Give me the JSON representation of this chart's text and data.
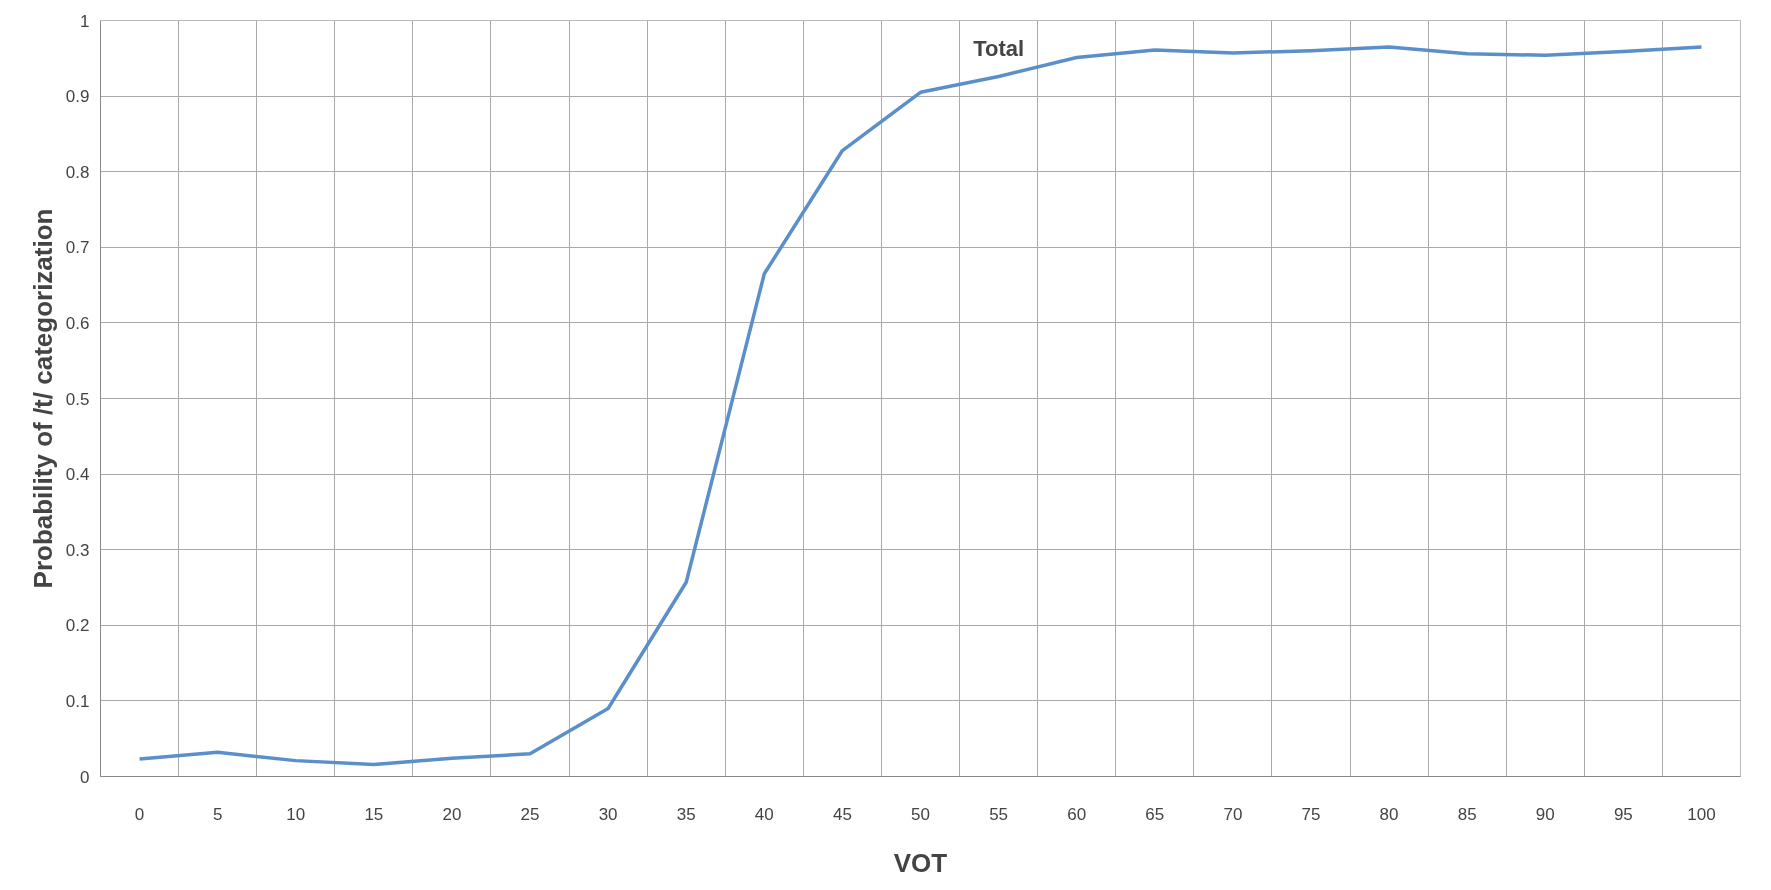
{
  "chart_data": {
    "type": "line",
    "title": "Total",
    "xlabel": "VOT",
    "ylabel": "Probability of /t/ categorization",
    "categories": [
      "0",
      "5",
      "10",
      "15",
      "20",
      "25",
      "30",
      "35",
      "40",
      "45",
      "50",
      "55",
      "60",
      "65",
      "70",
      "75",
      "80",
      "85",
      "90",
      "95",
      "100"
    ],
    "series": [
      {
        "color": "#5b8fc9",
        "values": [
          0.023,
          0.032,
          0.021,
          0.016,
          0.024,
          0.03,
          0.09,
          0.257,
          0.665,
          0.828,
          0.905,
          0.926,
          0.951,
          0.961,
          0.957,
          0.96,
          0.965,
          0.956,
          0.954,
          0.959,
          0.965
        ]
      }
    ],
    "ylim": [
      0,
      1
    ],
    "yticks": [
      0,
      0.1,
      0.2,
      0.3,
      0.4,
      0.5,
      0.6,
      0.7,
      0.8,
      0.9,
      1
    ],
    "grid": true,
    "marker": "none",
    "line_style": "solid"
  }
}
